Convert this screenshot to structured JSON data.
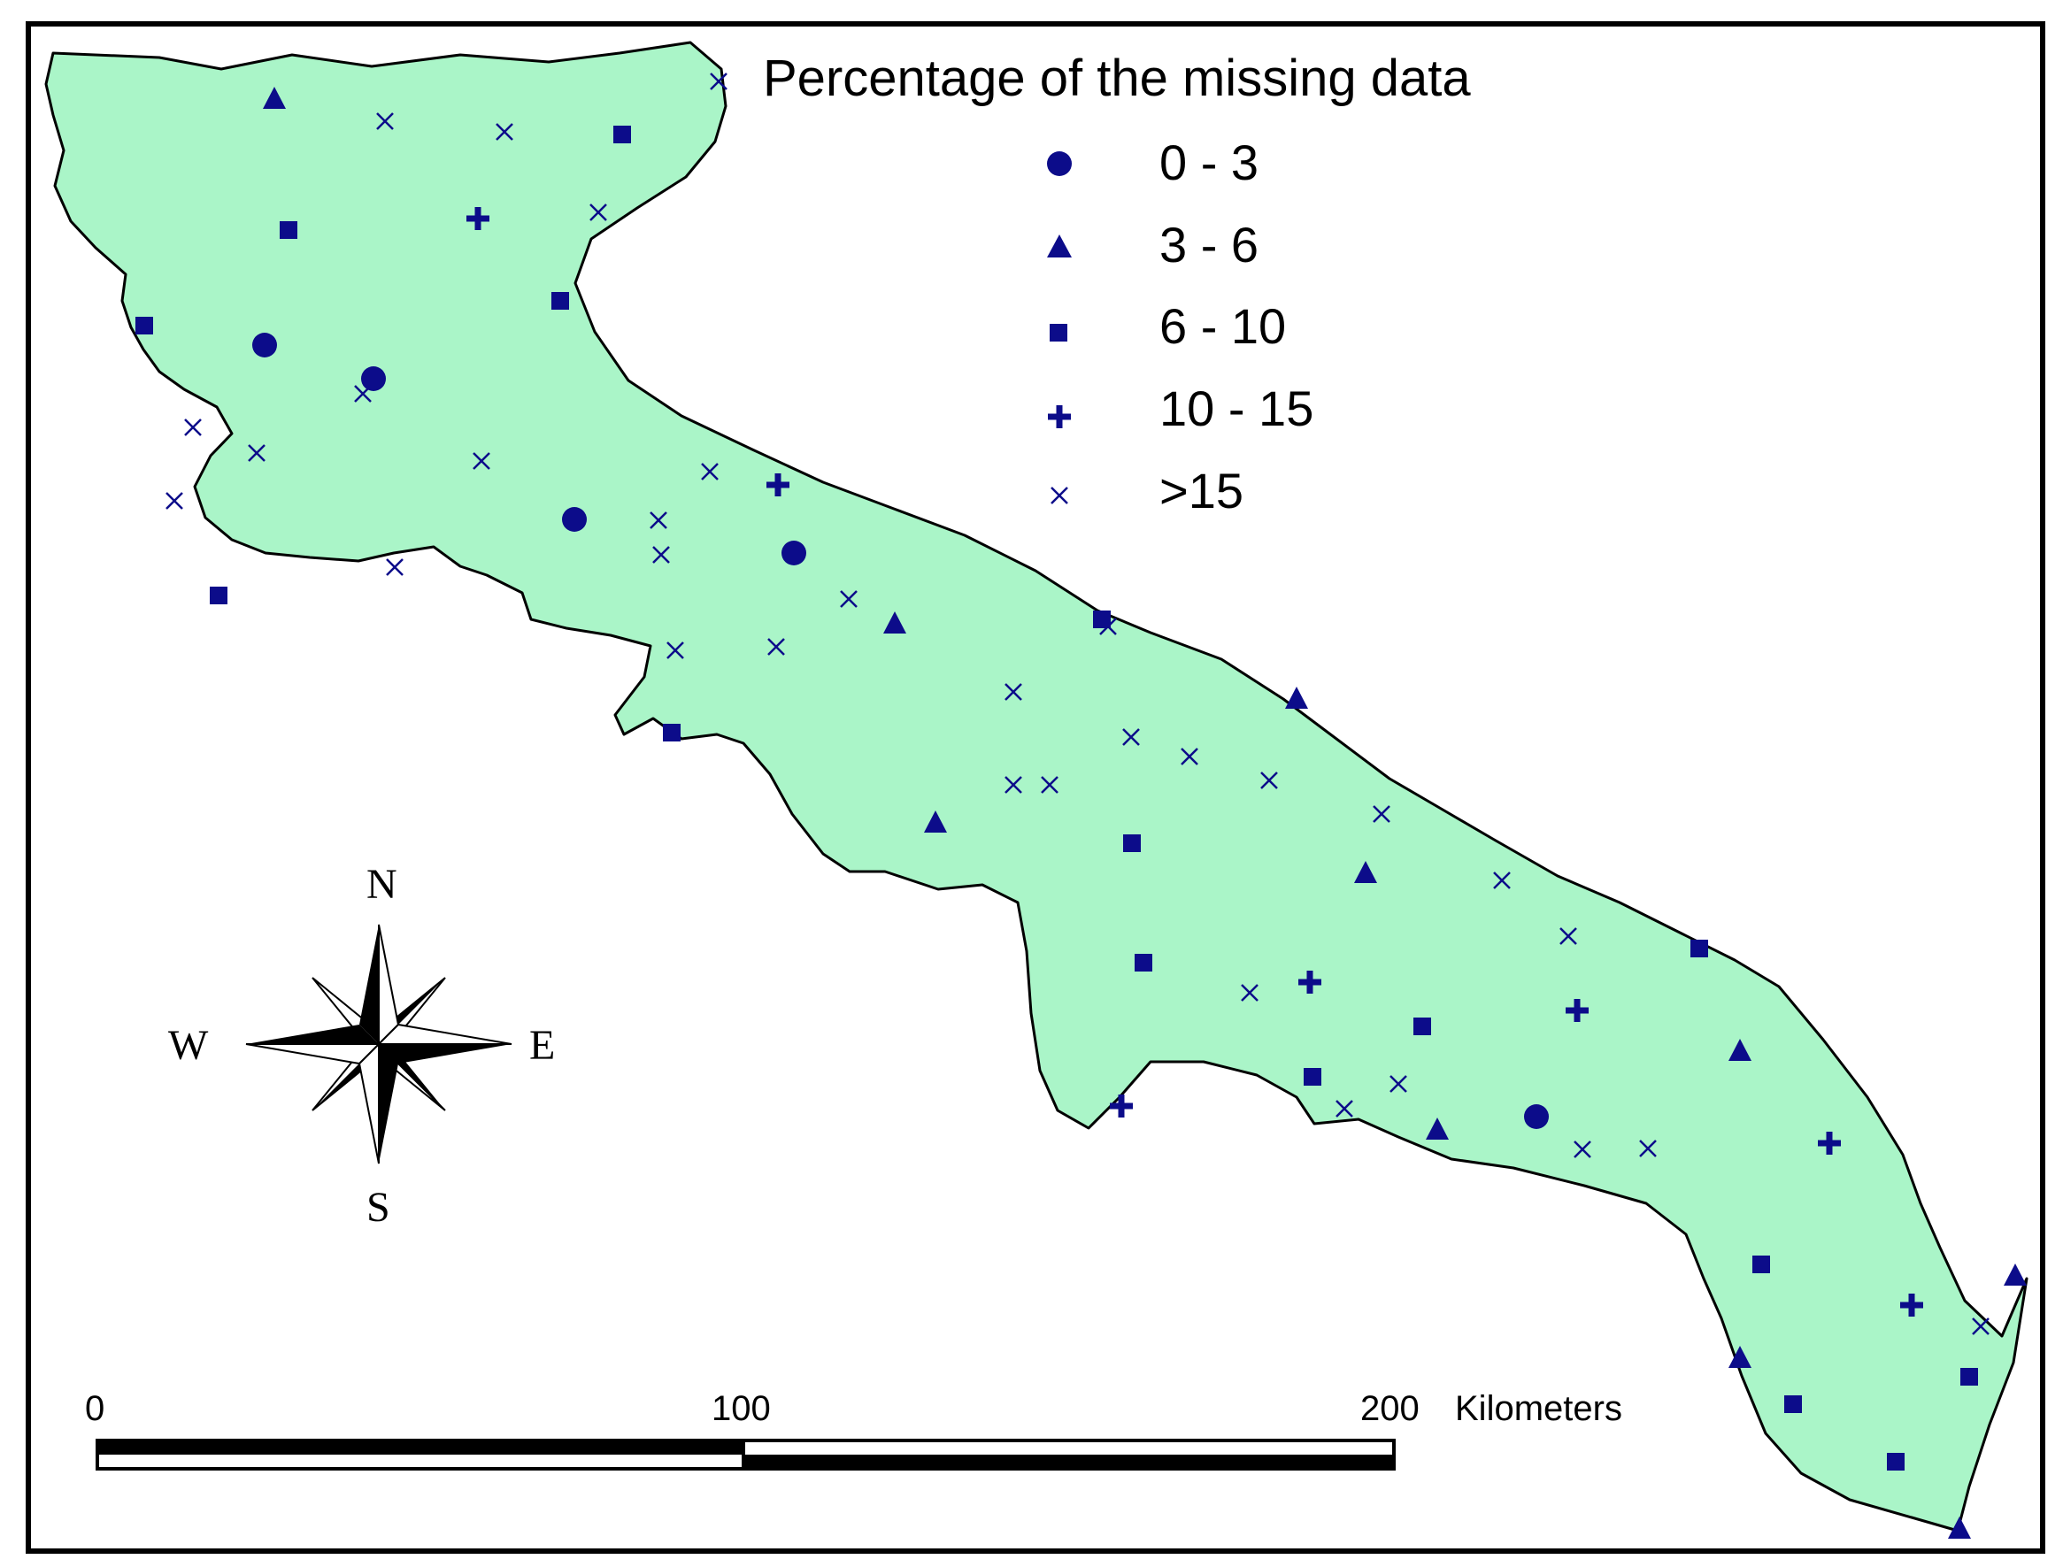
{
  "legend": {
    "title": "Percentage of the missing data",
    "classes": [
      {
        "label": "0 - 3",
        "symbol": "circle"
      },
      {
        "label": "3 - 6",
        "symbol": "triangle"
      },
      {
        "label": "6 - 10",
        "symbol": "square"
      },
      {
        "label": "10 - 15",
        "symbol": "cross"
      },
      {
        "label": ">15",
        "symbol": "x"
      }
    ]
  },
  "compass": {
    "north": "N",
    "south": "S",
    "east": "E",
    "west": "W"
  },
  "scale_bar": {
    "ticks": [
      "0",
      "100",
      "200"
    ],
    "unit": "Kilometers"
  },
  "colors": {
    "land": "#aaf5c8",
    "symbol": "#0c0c8a",
    "outline": "#000000",
    "frame": "#000000"
  }
}
